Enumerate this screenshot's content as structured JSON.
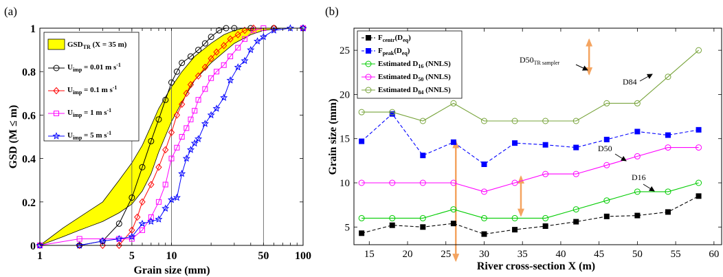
{
  "chart_data": [
    {
      "panel_label": "(a)",
      "type": "line",
      "xscale": "log",
      "xlabel": "Grain size (mm)",
      "ylabel": "GSD (M ≤ m)",
      "xlim": [
        1,
        100
      ],
      "ylim": [
        0,
        1
      ],
      "xticks": [
        1,
        5,
        10,
        50,
        100
      ],
      "yticks": [
        0,
        0.2,
        0.4,
        0.6,
        0.8,
        1
      ],
      "grid": "vertical lines at 5, 10, 50",
      "legend_position": "top-left",
      "band": {
        "label_main": "GSD",
        "label_sub": "TR",
        "label_rest": " (X = 35 m)",
        "color": "#ffff00",
        "upper": [
          [
            1,
            0
          ],
          [
            1.5,
            0.08
          ],
          [
            2,
            0.13
          ],
          [
            3,
            0.2
          ],
          [
            4,
            0.3
          ],
          [
            5,
            0.38
          ],
          [
            6,
            0.46
          ],
          [
            7,
            0.55
          ],
          [
            8,
            0.63
          ],
          [
            10,
            0.73
          ],
          [
            12,
            0.8
          ],
          [
            15,
            0.87
          ],
          [
            20,
            0.93
          ],
          [
            25,
            0.97
          ],
          [
            30,
            0.99
          ],
          [
            35,
            1.0
          ],
          [
            100,
            1.0
          ]
        ],
        "lower": [
          [
            1,
            0
          ],
          [
            1.5,
            0.04
          ],
          [
            2,
            0.07
          ],
          [
            3,
            0.11
          ],
          [
            4,
            0.15
          ],
          [
            5,
            0.19
          ],
          [
            6,
            0.25
          ],
          [
            7,
            0.33
          ],
          [
            8,
            0.43
          ],
          [
            10,
            0.57
          ],
          [
            12,
            0.66
          ],
          [
            15,
            0.76
          ],
          [
            20,
            0.84
          ],
          [
            25,
            0.89
          ],
          [
            30,
            0.93
          ],
          [
            40,
            0.97
          ],
          [
            50,
            0.99
          ],
          [
            70,
            1.0
          ],
          [
            100,
            1.0
          ]
        ]
      },
      "series": [
        {
          "name_main": "U",
          "name_sub": "imp",
          "name_rest": " = 0.01 m s",
          "name_sup": "-1",
          "color": "#000000",
          "marker": "circle",
          "points": [
            [
              1,
              0
            ],
            [
              2,
              0
            ],
            [
              3,
              0.02
            ],
            [
              4,
              0.1
            ],
            [
              5,
              0.22
            ],
            [
              6,
              0.36
            ],
            [
              7,
              0.48
            ],
            [
              8,
              0.58
            ],
            [
              9,
              0.67
            ],
            [
              10,
              0.75
            ],
            [
              11,
              0.8
            ],
            [
              12,
              0.84
            ],
            [
              14,
              0.87
            ],
            [
              16,
              0.9
            ],
            [
              18,
              0.93
            ],
            [
              20,
              0.96
            ],
            [
              23,
              0.99
            ],
            [
              26,
              1.0
            ],
            [
              30,
              1.0
            ],
            [
              40,
              1.0
            ],
            [
              60,
              1.0
            ],
            [
              100,
              1.0
            ]
          ]
        },
        {
          "name_main": "U",
          "name_sub": "imp",
          "name_rest": " = 0.1 m s",
          "name_sup": "-1",
          "color": "#ff0000",
          "marker": "diamond",
          "points": [
            [
              1,
              0
            ],
            [
              2,
              0
            ],
            [
              3,
              0
            ],
            [
              4,
              0
            ],
            [
              5,
              0.07
            ],
            [
              5.5,
              0.13
            ],
            [
              6,
              0.2
            ],
            [
              7,
              0.28
            ],
            [
              8,
              0.36
            ],
            [
              9,
              0.44
            ],
            [
              10,
              0.52
            ],
            [
              11,
              0.6
            ],
            [
              12,
              0.65
            ],
            [
              13,
              0.7
            ],
            [
              14,
              0.74
            ],
            [
              16,
              0.78
            ],
            [
              18,
              0.82
            ],
            [
              20,
              0.86
            ],
            [
              22,
              0.89
            ],
            [
              25,
              0.92
            ],
            [
              28,
              0.95
            ],
            [
              32,
              0.97
            ],
            [
              36,
              0.99
            ],
            [
              42,
              1.0
            ],
            [
              60,
              1.0
            ],
            [
              100,
              1.0
            ]
          ]
        },
        {
          "name_main": "U",
          "name_sub": "imp",
          "name_rest": " = 1 m s",
          "name_sup": "-1",
          "color": "#ff00ff",
          "marker": "square",
          "points": [
            [
              1,
              0
            ],
            [
              2,
              0.03
            ],
            [
              4,
              0.03
            ],
            [
              5,
              0.03
            ],
            [
              6,
              0.07
            ],
            [
              7,
              0.13
            ],
            [
              8,
              0.2
            ],
            [
              9,
              0.28
            ],
            [
              10,
              0.4
            ],
            [
              11,
              0.45
            ],
            [
              12,
              0.5
            ],
            [
              13,
              0.54
            ],
            [
              14,
              0.58
            ],
            [
              15,
              0.62
            ],
            [
              16,
              0.67
            ],
            [
              18,
              0.72
            ],
            [
              20,
              0.77
            ],
            [
              22,
              0.8
            ],
            [
              25,
              0.83
            ],
            [
              28,
              0.87
            ],
            [
              32,
              0.91
            ],
            [
              36,
              0.95
            ],
            [
              42,
              0.99
            ],
            [
              50,
              1.0
            ],
            [
              100,
              1.0
            ]
          ]
        },
        {
          "name_main": "U",
          "name_sub": "imp",
          "name_rest": " = 5 m s",
          "name_sup": "-1",
          "color": "#0000ff",
          "marker": "star",
          "points": [
            [
              1,
              0
            ],
            [
              2,
              0
            ],
            [
              3,
              0.02
            ],
            [
              4,
              0.03
            ],
            [
              5,
              0.04
            ],
            [
              6,
              0.1
            ],
            [
              7,
              0.11
            ],
            [
              8,
              0.12
            ],
            [
              9,
              0.17
            ],
            [
              10,
              0.21
            ],
            [
              11,
              0.22
            ],
            [
              12,
              0.33
            ],
            [
              13,
              0.4
            ],
            [
              14,
              0.44
            ],
            [
              15,
              0.47
            ],
            [
              16,
              0.49
            ],
            [
              18,
              0.56
            ],
            [
              20,
              0.6
            ],
            [
              22,
              0.63
            ],
            [
              25,
              0.68
            ],
            [
              28,
              0.76
            ],
            [
              32,
              0.82
            ],
            [
              36,
              0.85
            ],
            [
              40,
              0.9
            ],
            [
              45,
              0.94
            ],
            [
              50,
              0.96
            ],
            [
              60,
              0.99
            ],
            [
              80,
              1.0
            ],
            [
              100,
              1.0
            ]
          ]
        }
      ]
    },
    {
      "panel_label": "(b)",
      "type": "line",
      "xlabel": "River cross-section X (m)",
      "ylabel": "Grain size (mm)",
      "xlim": [
        13,
        61
      ],
      "ylim": [
        3,
        27.5
      ],
      "xticks": [
        15,
        20,
        25,
        30,
        35,
        40,
        45,
        50,
        55,
        60
      ],
      "yticks": [
        5,
        10,
        15,
        20,
        25
      ],
      "grid": "off",
      "legend_position": "top-left",
      "x": [
        14,
        18,
        22,
        26,
        30,
        34,
        38,
        42,
        46,
        50,
        54,
        58
      ],
      "series": [
        {
          "name_main": "F",
          "name_sub": "centr",
          "name_rest": "(D",
          "name_sub2": "eq",
          "name_end": ")",
          "color": "#000000",
          "marker": "square-filled",
          "dash": "dashed",
          "values": [
            4.3,
            5.2,
            5.0,
            5.4,
            4.2,
            4.7,
            5.1,
            5.6,
            6.2,
            6.3,
            6.7,
            8.5
          ]
        },
        {
          "name_main": "F",
          "name_sub": "peak",
          "name_rest": "(D",
          "name_sub2": "eq",
          "name_end": ")",
          "color": "#0000ff",
          "marker": "square-filled",
          "dash": "dashed",
          "values": [
            14.7,
            17.8,
            13.1,
            14.6,
            12.1,
            14.5,
            14.3,
            14.0,
            14.9,
            15.8,
            15.4,
            16.0
          ]
        },
        {
          "name_main": "Estimated D",
          "name_sub": "16",
          "name_rest": " (NNLS)",
          "color": "#00cc00",
          "marker": "circle",
          "dash": "solid",
          "values": [
            6,
            6,
            6,
            7,
            6,
            6,
            6,
            7,
            8,
            9,
            9,
            10
          ]
        },
        {
          "name_main": "Estimated D",
          "name_sub": "50",
          "name_rest": " (NNLS)",
          "color": "#ff00ff",
          "marker": "circle",
          "dash": "solid",
          "values": [
            10,
            10,
            10,
            10,
            9,
            10,
            11,
            11,
            12,
            13,
            14,
            14
          ]
        },
        {
          "name_main": "Estimated D",
          "name_sub": "84",
          "name_rest": " (NNLS)",
          "color": "#77a33a",
          "marker": "circle",
          "dash": "solid",
          "values": [
            18,
            18,
            17,
            19,
            17,
            17,
            17,
            17,
            19,
            19,
            22,
            25
          ]
        }
      ],
      "annotations": {
        "d50tr_main": "D50",
        "d50tr_sub": "TR sampler",
        "d84": "D84",
        "d50": "D50",
        "d16": "D16",
        "arrow_color": "#f4a460"
      },
      "ranges": [
        {
          "x": 26.3,
          "y": [
            1.2,
            14.7
          ]
        },
        {
          "x": 34.8,
          "y": [
            6.3,
            10.7
          ]
        },
        {
          "x": 43.7,
          "y": [
            22.3,
            26.2
          ]
        }
      ]
    }
  ]
}
